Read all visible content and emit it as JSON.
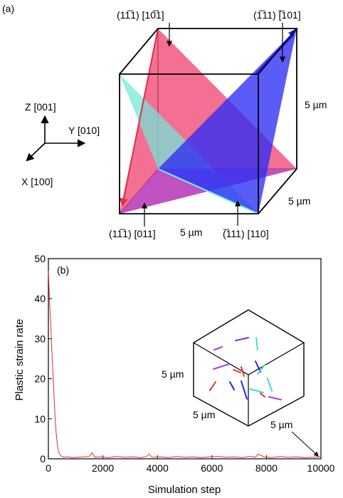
{
  "panel_a": {
    "label": "(a)",
    "slip_labels": {
      "top_left": "(11̅1) [10̅1]",
      "top_right": "(1̅11) [̅101]",
      "bottom_left": "(11̅1) [011]",
      "bottom_right": "(̅111) [110]"
    },
    "dimensions": {
      "right": "5 µm",
      "depth": "5 µm",
      "bottom": "5 µm"
    },
    "axes": {
      "z": "Z [001]",
      "y": "Y [010]",
      "x": "X [100]"
    },
    "colors": {
      "red_plane": "#f0507a",
      "blue_plane": "#2d2df5",
      "cyan_plane": "#70e8d8",
      "purple_plane": "#a040e0"
    }
  },
  "panel_b": {
    "label": "(b)",
    "inset_dimensions": {
      "left": "5 µm",
      "bottom": "5 µm",
      "right": "5 µm"
    },
    "chart_data": {
      "type": "line",
      "xlabel": "Simulation step",
      "ylabel": "Plastic strain rate",
      "xlim": [
        0,
        10000
      ],
      "ylim": [
        0,
        50
      ],
      "xticks": [
        "0",
        "2000",
        "4000",
        "6000",
        "8000",
        "10000"
      ],
      "yticks": [
        "0",
        "10",
        "20",
        "30",
        "40",
        "50"
      ],
      "series": [
        {
          "color": "#e03030",
          "x": [
            0,
            40,
            90,
            140,
            190,
            240,
            290,
            340,
            390,
            450,
            550,
            700,
            900,
            1100,
            1300,
            1500,
            1600,
            1700,
            1900,
            2200,
            2500,
            2800,
            3100,
            3400,
            3600,
            3700,
            3800,
            4100,
            4400,
            4700,
            5000,
            5300,
            5600,
            5900,
            6200,
            6500,
            6800,
            7100,
            7400,
            7600,
            7700,
            7900,
            8200,
            8500,
            8800,
            9100,
            9400,
            9700,
            10000
          ],
          "y": [
            47,
            40,
            33,
            25,
            18,
            11,
            6,
            3,
            1.5,
            0.8,
            0.4,
            0.5,
            0.3,
            0.4,
            0.5,
            0.6,
            1.5,
            0.4,
            0.5,
            0.3,
            0.6,
            0.4,
            0.5,
            0.3,
            0.6,
            1.2,
            0.4,
            0.5,
            0.3,
            0.6,
            0.4,
            0.5,
            0.3,
            0.5,
            0.6,
            0.4,
            0.5,
            0.3,
            0.6,
            0.4,
            1.2,
            0.5,
            0.3,
            0.6,
            0.4,
            0.5,
            0.3,
            0.4,
            0.5
          ]
        }
      ]
    }
  }
}
